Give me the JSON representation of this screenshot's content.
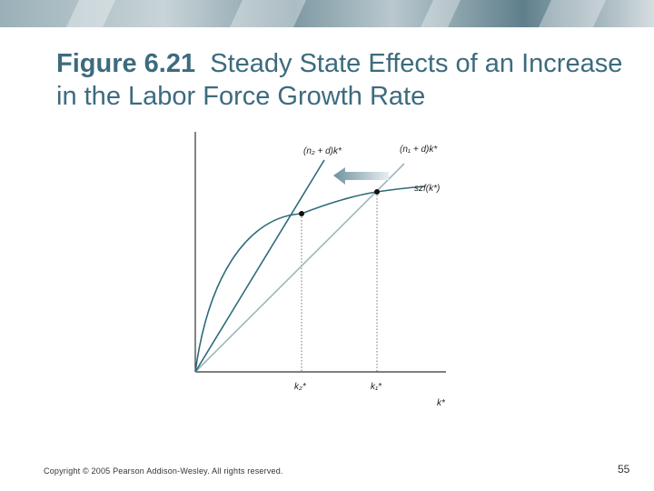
{
  "slide": {
    "title_number": "Figure 6.21",
    "title_text": "Steady State Effects of an Increase in the Labor Force Growth Rate",
    "copyright": "Copyright © 2005 Pearson Addison-Wesley. All rights reserved.",
    "page_number": "55"
  },
  "diagram": {
    "line_n2_label": "(n₂ + d)k*",
    "line_n1_label": "(n₁ + d)k*",
    "curve_label": "szf(k*)",
    "k2_label": "k₂*",
    "k1_label": "k₁*",
    "x_axis_label": "k*"
  },
  "colors": {
    "title": "#3d6b7e",
    "curve": "#2e6b7a",
    "line_n2": "#2e6b7a",
    "line_n1": "#9fb6bd",
    "arrow": "#7f9ea9"
  }
}
